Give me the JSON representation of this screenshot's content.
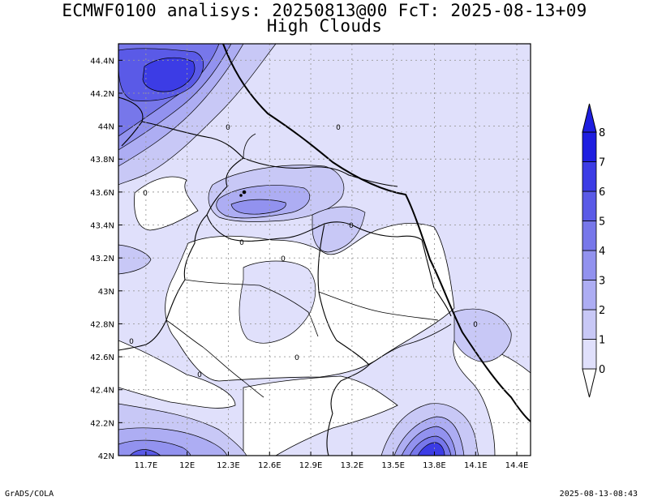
{
  "header": {
    "title_line1": "ECMWF0100 analisys: 20250813@00 FcT: 2025-08-13+09",
    "title_line2": "High Clouds"
  },
  "footer": {
    "left": "GrADS/COLA",
    "right": "2025-08-13-08:43"
  },
  "map": {
    "lon_ticks": [
      "11.7E",
      "12E",
      "12.3E",
      "12.6E",
      "12.9E",
      "13.2E",
      "13.5E",
      "13.8E",
      "14.1E",
      "14.4E"
    ],
    "lat_ticks": [
      "44.4N",
      "44.2N",
      "44N",
      "43.8N",
      "43.6N",
      "43.4N",
      "43.2N",
      "43N",
      "42.8N",
      "42.6N",
      "42.4N",
      "42.2N",
      "42N"
    ],
    "contour_labels": [
      "0",
      "0",
      "0",
      "0",
      "0",
      "0",
      "0",
      "0",
      "0",
      "0"
    ],
    "grid": true,
    "colors": {
      "level_0": "#ffffff",
      "level_1": "#e0e0fb",
      "level_2": "#c8c8f6",
      "level_3": "#adadf3",
      "level_4": "#9292ef",
      "level_5": "#7777ea",
      "level_6": "#5a5ae7",
      "level_7": "#3c3ce5",
      "level_8": "#1e1ee0"
    }
  },
  "colorbar": {
    "labels": [
      "0",
      "1",
      "2",
      "3",
      "4",
      "5",
      "6",
      "7",
      "8"
    ]
  }
}
